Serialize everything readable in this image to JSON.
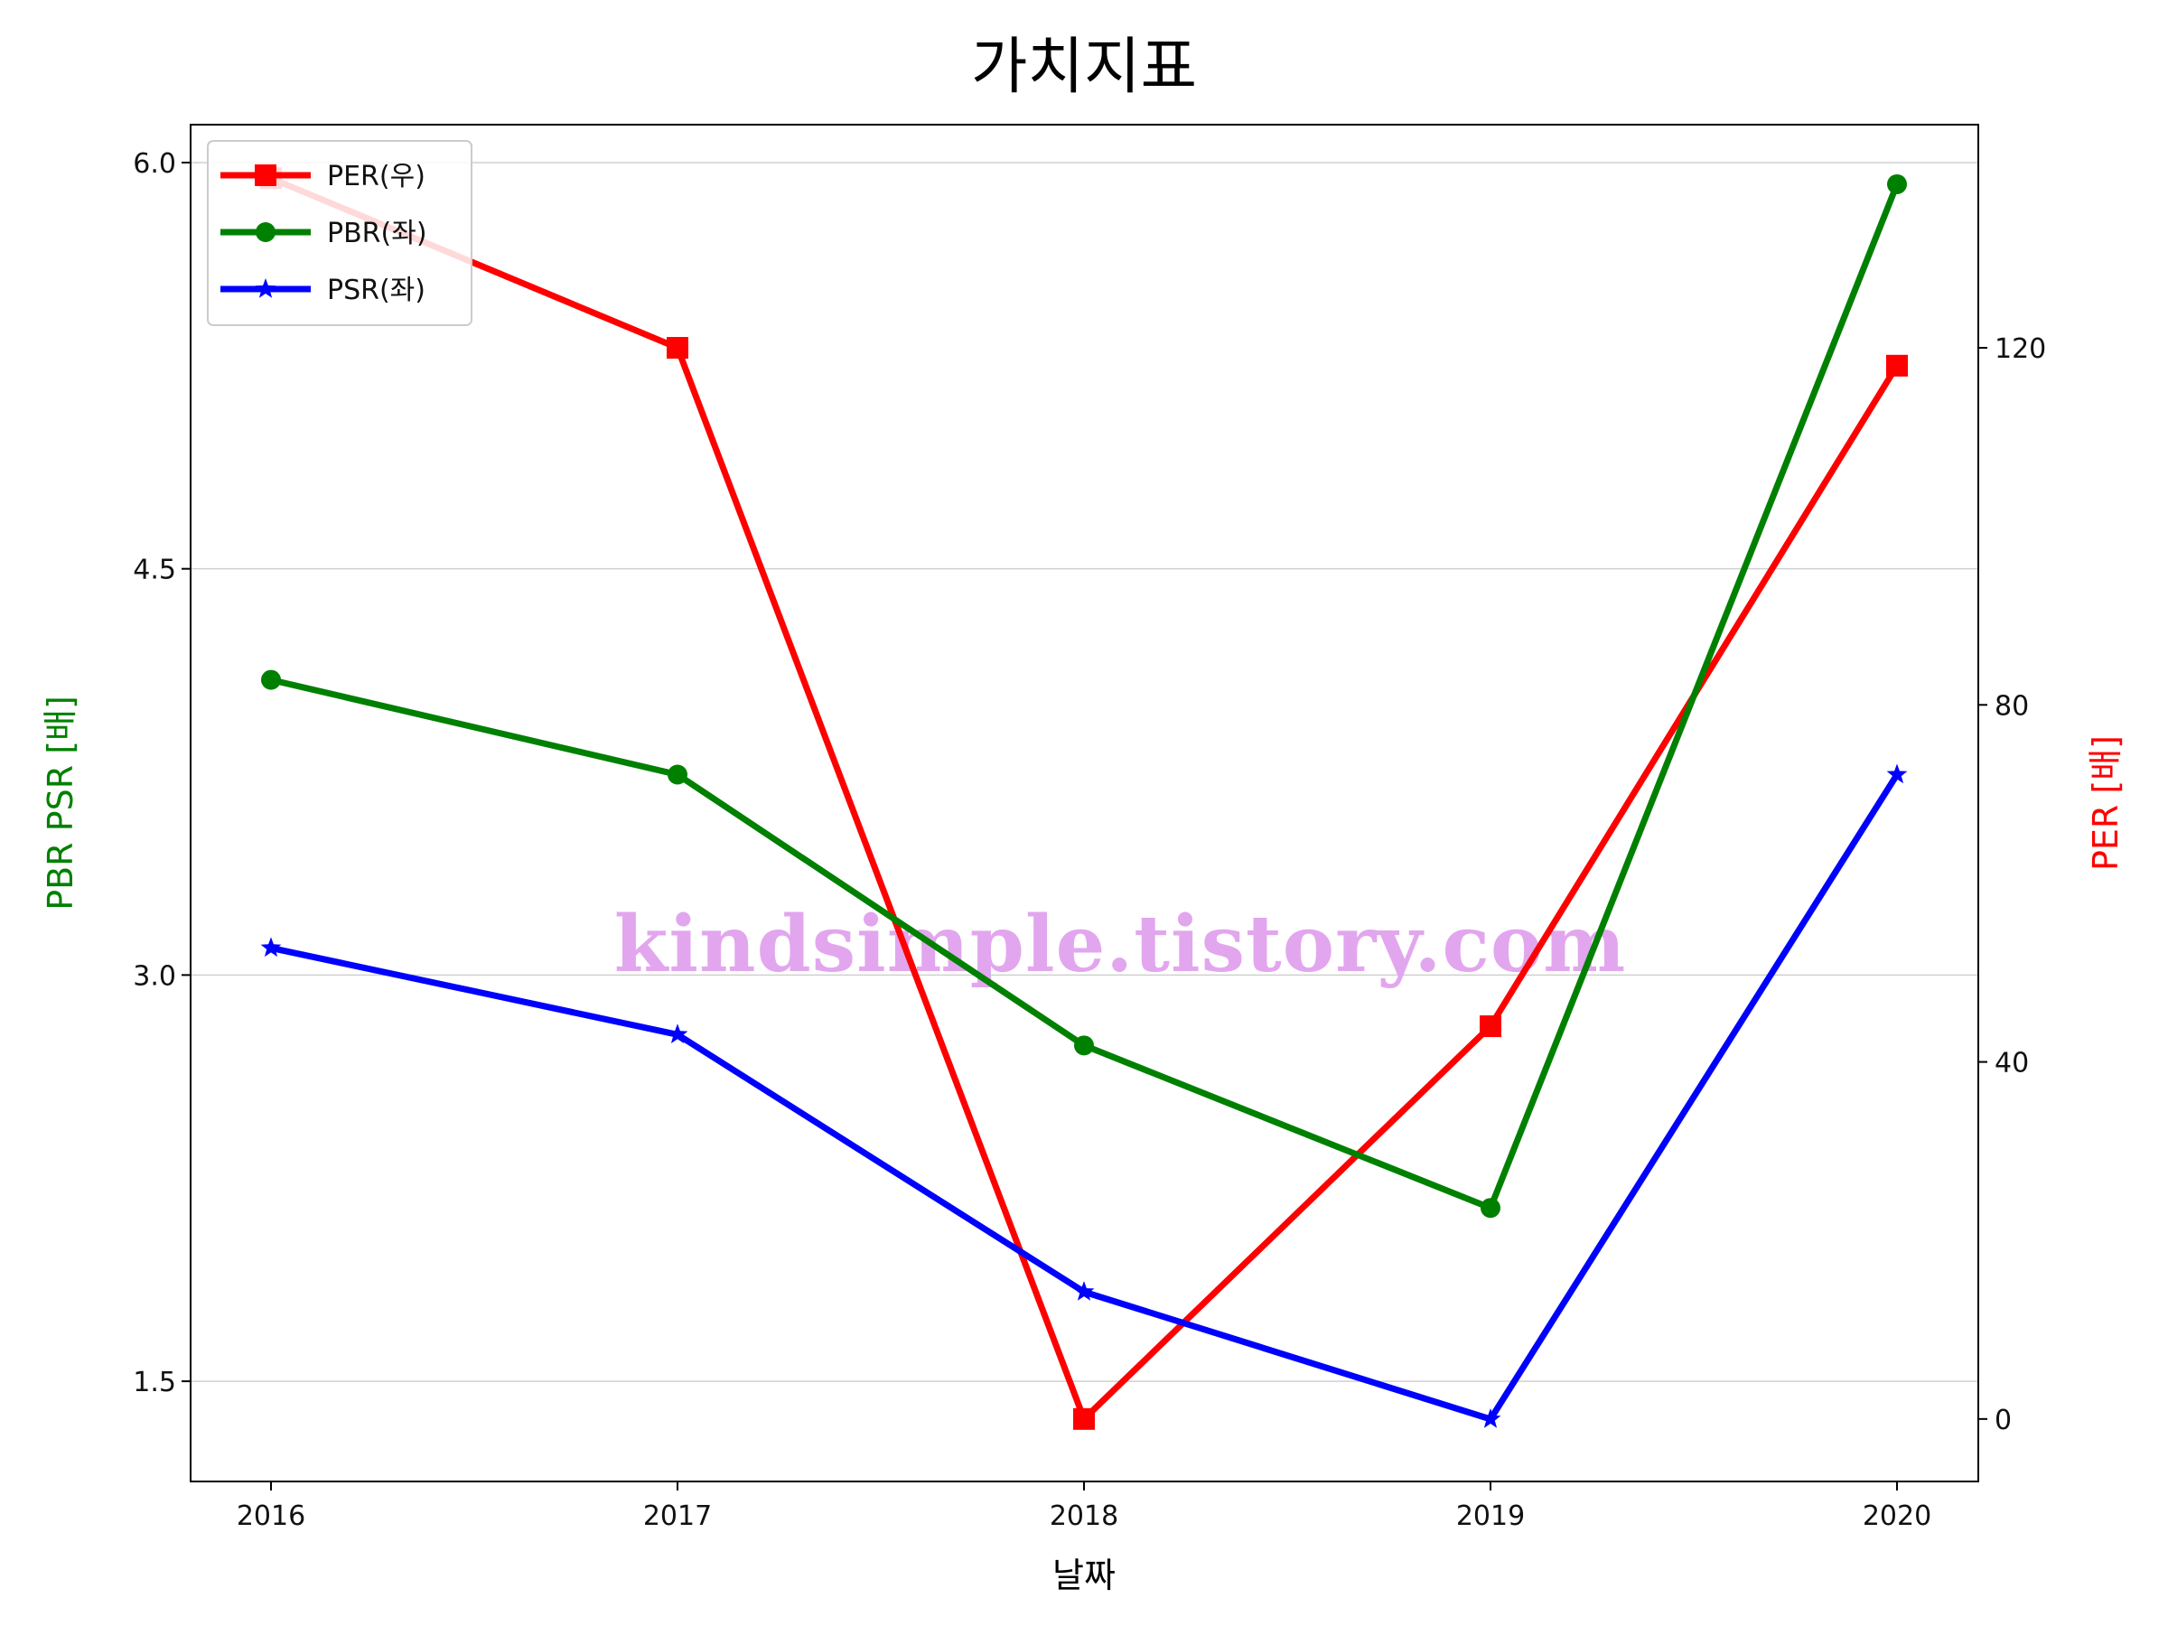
{
  "chart_data": {
    "type": "line",
    "title": "가치지표",
    "xlabel": "날짜",
    "ylabel_left": "PBR PSR [배]",
    "ylabel_right": "PER [배]",
    "categories": [
      "2016",
      "2017",
      "2018",
      "2019",
      "2020"
    ],
    "ylim_left": [
      1.13,
      6.14
    ],
    "ylim_right": [
      -7,
      145
    ],
    "yticks_left": [
      {
        "value": 1.5,
        "label": "1.5"
      },
      {
        "value": 3.0,
        "label": "3.0"
      },
      {
        "value": 4.5,
        "label": "4.5"
      },
      {
        "value": 6.0,
        "label": "6.0"
      }
    ],
    "yticks_right": [
      {
        "value": 0,
        "label": "0"
      },
      {
        "value": 40,
        "label": "40"
      },
      {
        "value": 80,
        "label": "80"
      },
      {
        "value": 120,
        "label": "120"
      }
    ],
    "grid": "horizontal (left axis)",
    "legend_position": "top-left",
    "series": [
      {
        "name": "PER(우)",
        "axis": "right",
        "marker": "square",
        "color": "#ff0000",
        "values": [
          139,
          120,
          0,
          44,
          118
        ]
      },
      {
        "name": "PBR(좌)",
        "axis": "left",
        "marker": "circle",
        "color": "#008000",
        "values": [
          4.09,
          3.74,
          2.74,
          2.14,
          5.92
        ]
      },
      {
        "name": "PSR(좌)",
        "axis": "left",
        "marker": "star",
        "color": "#0000ff",
        "values": [
          3.1,
          2.78,
          1.83,
          1.36,
          3.74
        ]
      }
    ],
    "watermark": "kindsimple.tistory.com"
  }
}
